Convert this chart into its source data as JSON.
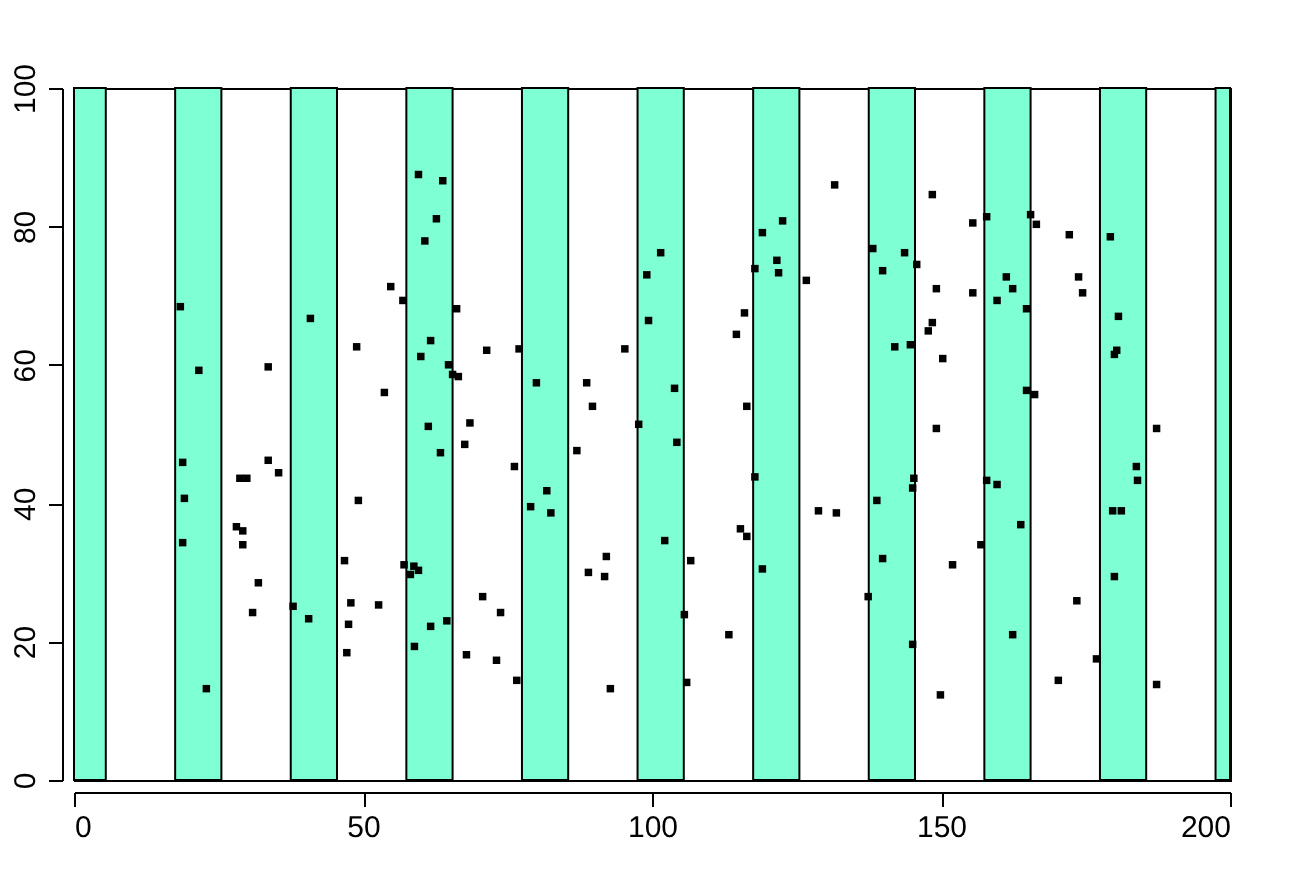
{
  "chart_data": {
    "type": "scatter",
    "x": [
      18.4,
      21.6,
      33.6,
      18.8,
      19.1,
      33.6,
      28.7,
      29.9,
      18.8,
      28.1,
      29.2,
      29.2,
      31.9,
      30.9,
      22.9,
      35.4,
      40.9,
      48.9,
      59.6,
      63.8,
      62.7,
      60.7,
      54.8,
      56.9,
      66.2,
      61.7,
      60.0,
      64.8,
      65.5,
      66.5,
      53.7,
      61.3,
      68.5,
      67.6,
      63.4,
      49.2,
      46.8,
      57.1,
      58.8,
      59.6,
      58.2,
      37.9,
      40.6,
      47.9,
      52.7,
      47.5,
      64.5,
      61.7,
      58.9,
      47.2,
      67.9,
      71.4,
      77.0,
      76.2,
      80.0,
      88.7,
      89.7,
      87.0,
      81.8,
      79.0,
      82.5,
      95.3,
      101.5,
      99.1,
      99.4,
      97.7,
      102.2,
      92.1,
      89.0,
      91.8,
      70.7,
      73.8,
      73.1,
      76.6,
      92.8,
      103.9,
      104.3,
      106.7,
      105.6,
      106.0,
      131.6,
      122.6,
      119.1,
      121.6,
      121.9,
      117.8,
      126.7,
      116.0,
      114.6,
      116.4,
      117.8,
      128.8,
      131.9,
      115.3,
      116.4,
      119.1,
      113.3,
      137.4,
      138.2,
      139.9,
      143.7,
      145.8,
      148.5,
      142.0,
      144.7,
      149.2,
      148.5,
      147.8,
      150.3,
      149.2,
      145.3,
      145.1,
      138.9,
      139.9,
      152.0,
      145.1,
      149.9,
      155.5,
      157.9,
      155.5,
      161.3,
      159.7,
      162.4,
      164.8,
      165.5,
      166.5,
      172.2,
      164.8,
      166.2,
      157.9,
      159.7,
      163.8,
      156.9,
      162.4,
      170.3,
      179.3,
      173.8,
      174.5,
      180.7,
      180.4,
      180.0,
      187.3,
      183.8,
      184.0,
      179.7,
      181.2,
      180.0,
      173.5,
      176.9,
      187.3
    ],
    "values": [
      68.4,
      59.2,
      59.7,
      45.9,
      40.7,
      46.2,
      43.6,
      43.6,
      34.3,
      36.6,
      36.0,
      34.0,
      28.5,
      24.2,
      13.2,
      44.4,
      66.7,
      62.6,
      87.5,
      86.6,
      81.1,
      77.9,
      71.3,
      69.3,
      68.1,
      63.5,
      61.2,
      60.0,
      58.6,
      58.3,
      56.0,
      51.1,
      51.6,
      48.5,
      47.3,
      40.4,
      31.7,
      31.1,
      30.9,
      30.3,
      29.7,
      25.1,
      23.3,
      25.6,
      25.3,
      22.5,
      23.0,
      22.2,
      19.3,
      18.4,
      18.1,
      62.1,
      62.3,
      45.3,
      57.4,
      57.4,
      54.0,
      47.6,
      41.8,
      39.5,
      38.6,
      62.3,
      76.2,
      73.0,
      66.4,
      51.4,
      34.6,
      32.3,
      30.0,
      29.4,
      26.5,
      24.2,
      17.3,
      14.4,
      13.2,
      56.6,
      48.8,
      31.7,
      23.9,
      14.1,
      86.0,
      80.8,
      79.1,
      75.1,
      73.3,
      73.9,
      72.2,
      67.5,
      64.4,
      54.0,
      43.8,
      38.9,
      38.6,
      36.3,
      35.2,
      30.5,
      21.0,
      26.5,
      76.8,
      73.6,
      76.2,
      74.5,
      84.6,
      62.6,
      62.9,
      71.0,
      66.1,
      64.9,
      60.9,
      50.8,
      43.6,
      42.2,
      40.4,
      32.0,
      31.1,
      19.6,
      12.3,
      80.5,
      81.4,
      70.4,
      72.7,
      69.3,
      71.0,
      68.1,
      81.7,
      80.3,
      78.8,
      56.3,
      55.7,
      43.3,
      42.7,
      36.9,
      34.0,
      21.0,
      14.4,
      78.5,
      72.7,
      70.4,
      67.0,
      62.1,
      61.5,
      50.8,
      45.3,
      43.3,
      38.9,
      38.9,
      29.4,
      25.9,
      17.5,
      13.8
    ],
    "color": "#000000",
    "marker": "square",
    "xlim": [
      0,
      200
    ],
    "ylim": [
      0,
      100
    ],
    "xticks": [
      0,
      50,
      100,
      150,
      200
    ],
    "yticks": [
      0,
      20,
      40,
      60,
      80,
      100
    ],
    "grid": false,
    "bands": [
      {
        "axis": "x",
        "from": 0,
        "to": 5.5,
        "color": "#7fffd4"
      },
      {
        "axis": "x",
        "from": 17.5,
        "to": 25.5,
        "color": "#7fffd4"
      },
      {
        "axis": "x",
        "from": 37.5,
        "to": 45.5,
        "color": "#7fffd4"
      },
      {
        "axis": "x",
        "from": 57.5,
        "to": 65.5,
        "color": "#7fffd4"
      },
      {
        "axis": "x",
        "from": 77.5,
        "to": 85.5,
        "color": "#7fffd4"
      },
      {
        "axis": "x",
        "from": 97.5,
        "to": 105.5,
        "color": "#7fffd4"
      },
      {
        "axis": "x",
        "from": 117.5,
        "to": 125.5,
        "color": "#7fffd4"
      },
      {
        "axis": "x",
        "from": 137.5,
        "to": 145.5,
        "color": "#7fffd4"
      },
      {
        "axis": "x",
        "from": 157.5,
        "to": 165.5,
        "color": "#7fffd4"
      },
      {
        "axis": "x",
        "from": 177.5,
        "to": 185.5,
        "color": "#7fffd4"
      },
      {
        "axis": "x",
        "from": 197.5,
        "to": 200,
        "color": "#7fffd4"
      }
    ]
  }
}
